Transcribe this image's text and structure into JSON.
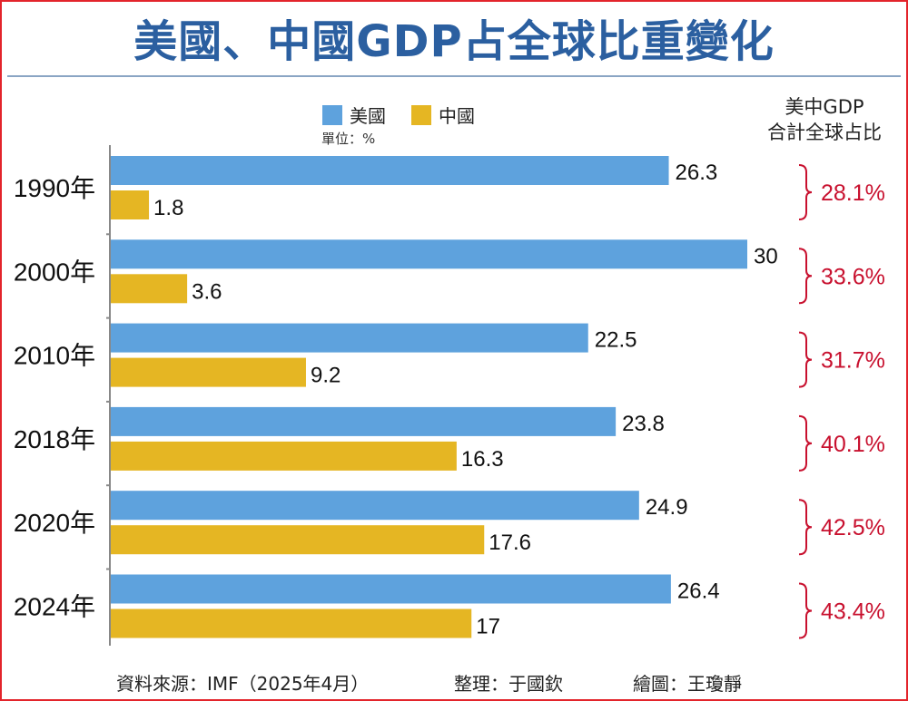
{
  "title": "美國、中國GDP占全球比重變化",
  "legend": {
    "us": "美國",
    "china": "中國"
  },
  "unit": "單位：%",
  "combined_header": {
    "line1": "美中GDP",
    "line2": "合計全球占比"
  },
  "colors": {
    "us": "#5ea2dd",
    "china": "#e5b623",
    "pct": "#c8102e",
    "title": "#2b5fa0"
  },
  "chart_data": {
    "type": "bar",
    "orientation": "horizontal",
    "categories": [
      "1990年",
      "2000年",
      "2010年",
      "2018年",
      "2020年",
      "2024年"
    ],
    "series": [
      {
        "name": "美國",
        "values": [
          26.3,
          30,
          22.5,
          23.8,
          24.9,
          26.4
        ]
      },
      {
        "name": "中國",
        "values": [
          1.8,
          3.6,
          9.2,
          16.3,
          17.6,
          17
        ]
      }
    ],
    "value_labels": {
      "us": [
        "26.3",
        "30",
        "22.5",
        "23.8",
        "24.9",
        "26.4"
      ],
      "china": [
        "1.8",
        "3.6",
        "9.2",
        "16.3",
        "17.6",
        "17"
      ]
    },
    "combined_share_labels": [
      "28.1%",
      "33.6%",
      "31.7%",
      "40.1%",
      "42.5%",
      "43.4%"
    ],
    "xlim": [
      0,
      30
    ],
    "grid": false
  },
  "footer": {
    "source": "資料來源：IMF（2025年4月）",
    "editor": "整理：于國欽",
    "artist": "繪圖：王瓊靜"
  }
}
